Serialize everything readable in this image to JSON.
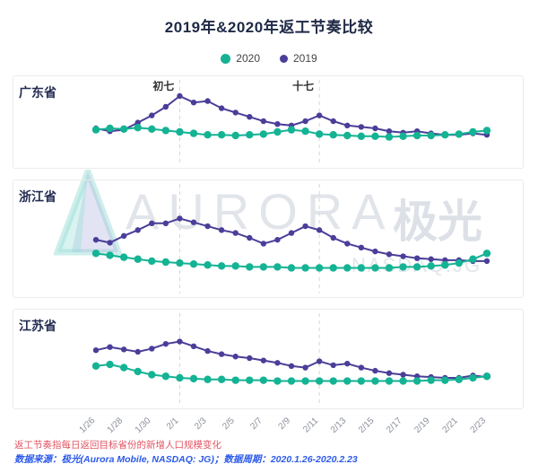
{
  "title": "2019年&2020年返工节奏比较",
  "legend": [
    {
      "label": "2020",
      "color": "#14b394"
    },
    {
      "label": "2019",
      "color": "#4a3e99"
    }
  ],
  "watermark": {
    "brand": "AURORA",
    "brand_cn": "极光",
    "ticker": "NASDAQ:JG"
  },
  "footnotes": {
    "definition": "返工节奏指每日返回目标省份的新增人口规模变化",
    "source": "数据来源：极光(Aurora Mobile, NASDAQ: JG)；数据周期：2020.1.26-2020.2.23"
  },
  "chart_data": {
    "type": "line",
    "x": [
      "1/26",
      "1/27",
      "1/28",
      "1/29",
      "1/30",
      "1/31",
      "2/1",
      "2/2",
      "2/3",
      "2/4",
      "2/5",
      "2/6",
      "2/7",
      "2/8",
      "2/9",
      "2/10",
      "2/11",
      "2/12",
      "2/13",
      "2/14",
      "2/15",
      "2/16",
      "2/17",
      "2/18",
      "2/19",
      "2/20",
      "2/21",
      "2/22",
      "2/23"
    ],
    "tick_labels": [
      "1/26",
      "1/28",
      "1/30",
      "2/1",
      "2/3",
      "2/5",
      "2/7",
      "2/9",
      "2/11",
      "2/13",
      "2/15",
      "2/17",
      "2/19",
      "2/21",
      "2/23"
    ],
    "annotations": [
      {
        "label": "初七",
        "index": 6
      },
      {
        "label": "十七",
        "index": 16
      }
    ],
    "ylim": [
      0,
      100
    ],
    "legend_position": "top",
    "grid": false,
    "charts": [
      {
        "region": "广东省",
        "show_annotation_labels": true,
        "series": [
          {
            "name": "2019",
            "color": "#4a3e99",
            "marker_r": 3.2,
            "values": [
              40,
              36,
              38,
              48,
              58,
              70,
              85,
              76,
              78,
              68,
              62,
              56,
              50,
              46,
              44,
              50,
              58,
              50,
              44,
              42,
              40,
              36,
              34,
              36,
              33,
              31,
              31,
              33,
              31
            ]
          },
          {
            "name": "2020",
            "color": "#14b394",
            "marker_r": 4.2,
            "values": [
              38,
              40,
              39,
              41,
              39,
              37,
              35,
              33,
              31,
              31,
              30,
              31,
              32,
              35,
              38,
              36,
              32,
              31,
              30,
              29,
              29,
              28,
              29,
              30,
              30,
              31,
              32,
              35,
              37
            ]
          }
        ]
      },
      {
        "region": "浙江省",
        "show_annotation_labels": false,
        "series": [
          {
            "name": "2019",
            "color": "#4a3e99",
            "marker_r": 3.2,
            "values": [
              48,
              45,
              52,
              58,
              65,
              65,
              70,
              66,
              62,
              58,
              55,
              50,
              44,
              48,
              55,
              62,
              58,
              50,
              44,
              40,
              36,
              33,
              31,
              29,
              28,
              27,
              27,
              26,
              26
            ]
          },
          {
            "name": "2020",
            "color": "#14b394",
            "marker_r": 4.2,
            "values": [
              34,
              32,
              30,
              28,
              26,
              25,
              24,
              23,
              22,
              21,
              21,
              20,
              20,
              20,
              19,
              19,
              19,
              19,
              19,
              19,
              19,
              19,
              20,
              20,
              21,
              22,
              24,
              28,
              34
            ]
          }
        ]
      },
      {
        "region": "江苏省",
        "show_annotation_labels": false,
        "series": [
          {
            "name": "2019",
            "color": "#4a3e99",
            "marker_r": 3.2,
            "values": [
              60,
              64,
              61,
              58,
              62,
              68,
              71,
              65,
              59,
              55,
              52,
              50,
              47,
              44,
              40,
              38,
              46,
              41,
              43,
              38,
              34,
              31,
              29,
              27,
              26,
              25,
              25,
              28,
              26
            ]
          },
          {
            "name": "2020",
            "color": "#14b394",
            "marker_r": 4.2,
            "values": [
              40,
              42,
              38,
              33,
              29,
              27,
              25,
              24,
              23,
              23,
              22,
              22,
              22,
              21,
              21,
              21,
              21,
              21,
              21,
              21,
              21,
              21,
              21,
              21,
              22,
              22,
              23,
              25,
              27
            ]
          }
        ]
      }
    ]
  }
}
